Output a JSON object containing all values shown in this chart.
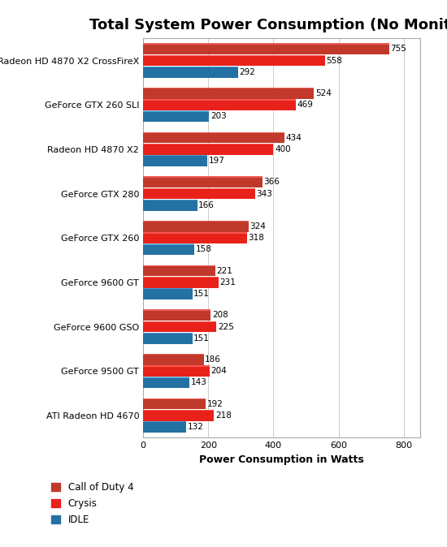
{
  "title": "Total System Power Consumption (No Monitor)",
  "categories": [
    "Radeon HD 4870 X2 CrossFireX",
    "GeForce GTX 260 SLI",
    "Radeon HD 4870 X2",
    "GeForce GTX 280",
    "GeForce GTX 260",
    "GeForce 9600 GT",
    "GeForce 9600 GSO",
    "GeForce 9500 GT",
    "ATI Radeon HD 4670"
  ],
  "series": {
    "Call of Duty 4": [
      755,
      524,
      434,
      366,
      324,
      221,
      208,
      186,
      192
    ],
    "Crysis": [
      558,
      469,
      400,
      343,
      318,
      231,
      225,
      204,
      218
    ],
    "IDLE": [
      292,
      203,
      197,
      166,
      158,
      151,
      151,
      143,
      132
    ]
  },
  "colors": {
    "Call of Duty 4": "#C0392B",
    "Crysis": "#E8221A",
    "IDLE": "#2471A3"
  },
  "xlabel": "Power Consumption in Watts",
  "xlim": [
    0,
    850
  ],
  "xticks": [
    0,
    200,
    400,
    600,
    800
  ],
  "bar_height": 0.26,
  "label_fontsize": 7.5,
  "title_fontsize": 13,
  "axis_label_fontsize": 9,
  "tick_fontsize": 8,
  "background_color": "#FFFFFF",
  "series_order": [
    "Call of Duty 4",
    "Crysis",
    "IDLE"
  ]
}
